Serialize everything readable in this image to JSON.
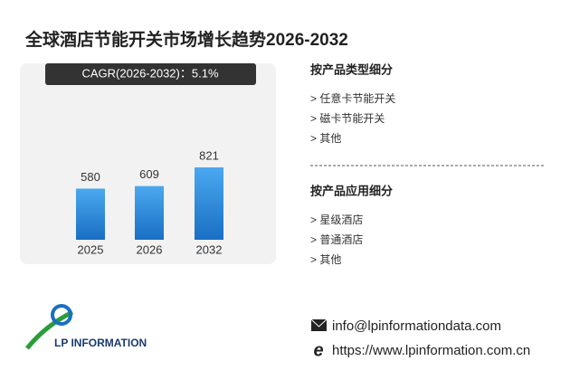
{
  "chart_data": {
    "type": "bar",
    "title": "全球酒店节能开关市场增长趋势2026-2032",
    "annotation": "CAGR(2026-2032)：5.1%",
    "categories": [
      "2025",
      "2026",
      "2032"
    ],
    "values": [
      580,
      609,
      821
    ]
  },
  "segments": [
    {
      "title": "按产品类型细分",
      "items": [
        "> 任意卡节能开关",
        "> 磁卡节能开关",
        "> 其他"
      ]
    },
    {
      "title": "按产品应用细分",
      "items": [
        "> 星级酒店",
        "> 普通酒店",
        "> 其他"
      ]
    }
  ],
  "logo": {
    "text": "LP INFORMATION"
  },
  "contact": {
    "email": "info@lpinformationdata.com",
    "url": "https://www.lpinformation.com.cn"
  }
}
